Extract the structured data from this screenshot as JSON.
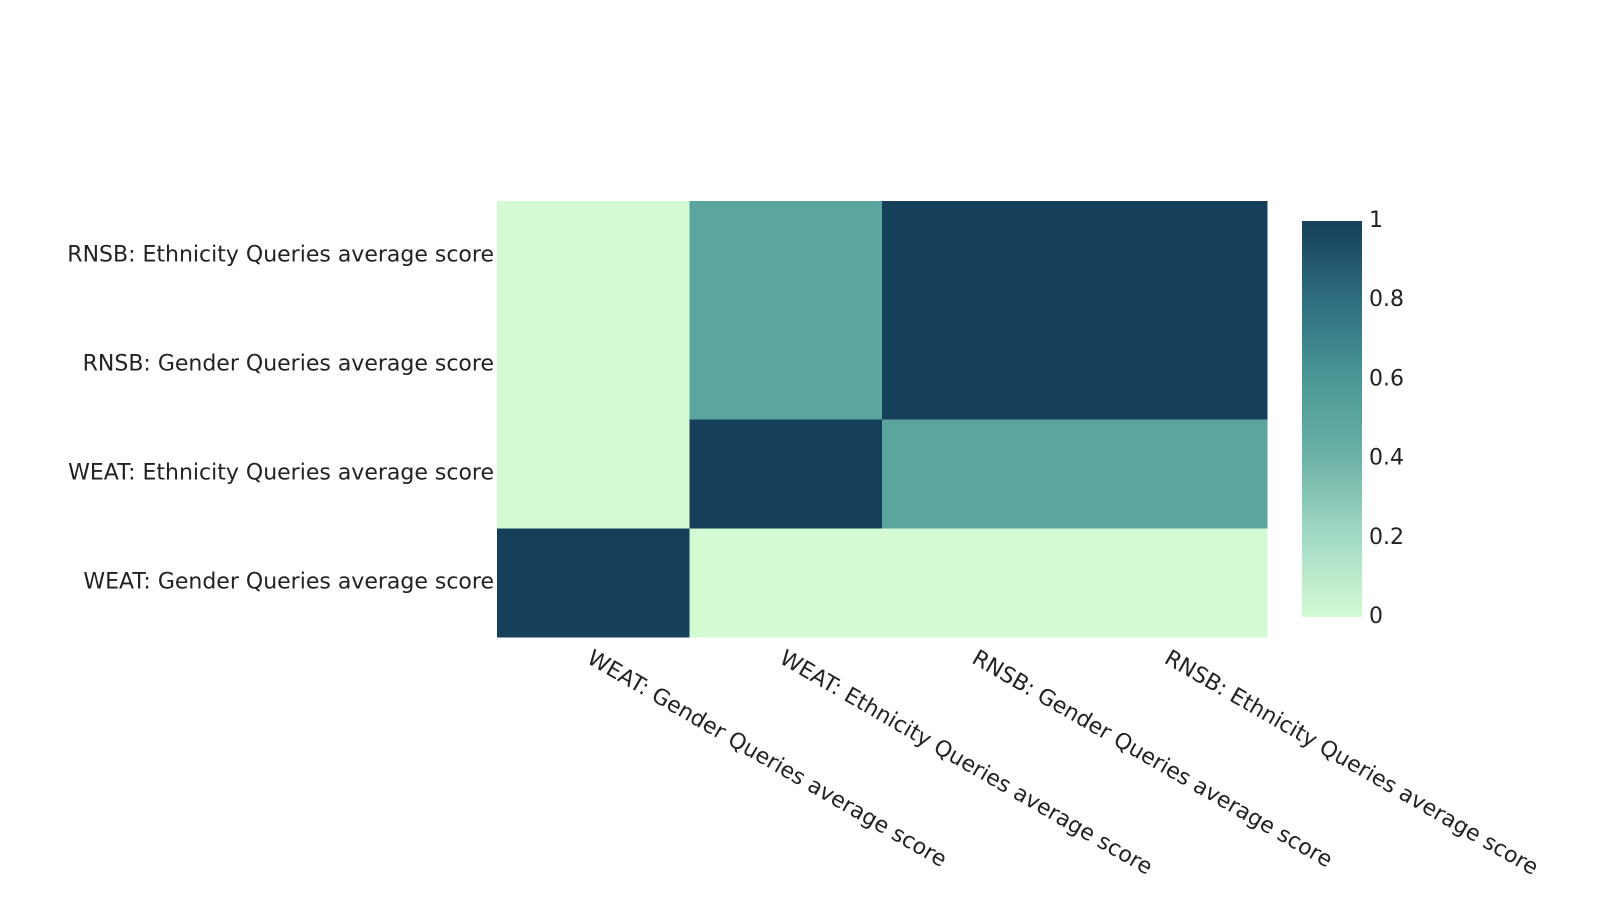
{
  "chart_data": {
    "type": "heatmap",
    "title": "",
    "xlabel": "",
    "ylabel": "",
    "x": [
      "WEAT: Gender Queries average score",
      "WEAT: Ethnicity Queries average score",
      "RNSB: Gender Queries average score",
      "RNSB: Ethnicity Queries average score"
    ],
    "y": [
      "WEAT: Gender Queries average score",
      "WEAT: Ethnicity Queries average score",
      "RNSB: Gender Queries average score",
      "RNSB: Ethnicity Queries average score"
    ],
    "z": [
      [
        1,
        0,
        0,
        0
      ],
      [
        0,
        1,
        0.5,
        0.5
      ],
      [
        0,
        0.5,
        1,
        1
      ],
      [
        0,
        0.5,
        1,
        1
      ]
    ],
    "zlim": [
      0,
      1
    ],
    "colorscale": [
      [
        0,
        "#d3fad3"
      ],
      [
        0.2,
        "#a4dbc6"
      ],
      [
        0.4,
        "#6db2a6"
      ],
      [
        0.6,
        "#4a9896"
      ],
      [
        0.8,
        "#2f6d80"
      ],
      [
        1,
        "#163f5a"
      ]
    ],
    "colorbar": {
      "ticks": [
        0,
        0.2,
        0.4,
        0.6,
        0.8,
        1
      ],
      "tick_labels": [
        "0",
        "0.2",
        "0.4",
        "0.6",
        "0.8",
        "1"
      ]
    },
    "grid": false
  }
}
